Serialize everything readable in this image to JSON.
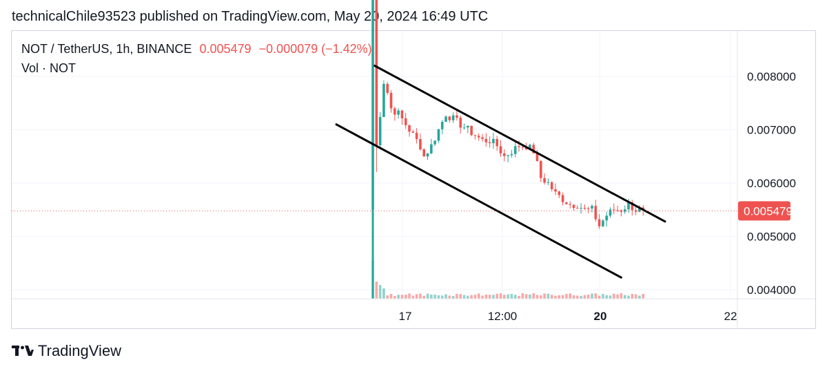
{
  "header": {
    "published_text": "technicalChile93523 published on TradingView.com, May 20, 2024 16:49 UTC"
  },
  "legend": {
    "symbol": "NOT / TetherUS, 1h, BINANCE",
    "last": "0.005479",
    "change": "−0.000079 (−1.42%)",
    "volume_label": "Vol · NOT"
  },
  "price_axis": {
    "ticks": [
      "0.008000",
      "0.007000",
      "0.006000",
      "0.005000",
      "0.004000"
    ],
    "current_label": "0.005479"
  },
  "time_axis": {
    "ticks": [
      "17",
      "12:00",
      "20",
      "22"
    ]
  },
  "footer": {
    "brand": "TradingView"
  },
  "colors": {
    "up": "#26a69a",
    "down": "#ef5350",
    "trendline": "#000000",
    "grid": "#f0f3fa",
    "current_price_line": "#ef5350"
  },
  "chart_data": {
    "type": "candlestick",
    "title": "NOT / TetherUS, 1h, BINANCE",
    "ylim": [
      0.0038,
      0.0097
    ],
    "last_price": 0.005479,
    "price_ticks": [
      0.008,
      0.007,
      0.006,
      0.005,
      0.004
    ],
    "close_path": [
      [
        0,
        0.0095
      ],
      [
        1,
        0.0067
      ],
      [
        2,
        0.0073
      ],
      [
        3,
        0.0079
      ],
      [
        4,
        0.0077
      ],
      [
        5,
        0.0074
      ],
      [
        7,
        0.0073
      ],
      [
        9,
        0.0071
      ],
      [
        11,
        0.0069
      ],
      [
        13,
        0.0067
      ],
      [
        14,
        0.0065
      ],
      [
        16,
        0.0067
      ],
      [
        18,
        0.007
      ],
      [
        20,
        0.0073
      ],
      [
        22,
        0.0072
      ],
      [
        24,
        0.0071
      ],
      [
        26,
        0.007
      ],
      [
        28,
        0.0069
      ],
      [
        30,
        0.0068
      ],
      [
        32,
        0.0068
      ],
      [
        34,
        0.0067
      ],
      [
        36,
        0.0065
      ],
      [
        38,
        0.0066
      ],
      [
        40,
        0.0067
      ],
      [
        42,
        0.0067
      ],
      [
        44,
        0.0066
      ],
      [
        46,
        0.0061
      ],
      [
        48,
        0.006
      ],
      [
        50,
        0.0058
      ],
      [
        52,
        0.0057
      ],
      [
        54,
        0.0056
      ],
      [
        56,
        0.0056
      ],
      [
        58,
        0.0055
      ],
      [
        60,
        0.0055
      ],
      [
        62,
        0.0052
      ],
      [
        64,
        0.0054
      ],
      [
        66,
        0.0055
      ],
      [
        68,
        0.0055
      ],
      [
        70,
        0.0056
      ],
      [
        72,
        0.0055
      ],
      [
        74,
        0.0055
      ]
    ],
    "channel_lines": [
      {
        "from": [
          0.5,
          0.0082
        ],
        "to": [
          80,
          0.00528
        ]
      },
      {
        "from": [
          -10,
          0.0071
        ],
        "to": [
          68,
          0.00423
        ]
      }
    ]
  }
}
